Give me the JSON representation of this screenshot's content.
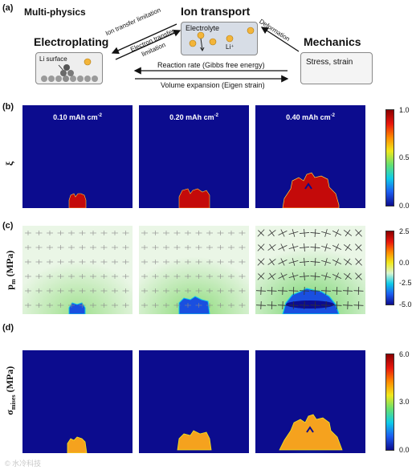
{
  "panels": {
    "a": "(a)",
    "b": "(b)",
    "c": "(c)",
    "d": "(d)"
  },
  "schematic": {
    "multiphysics": "Multi-physics",
    "ion_transport": "Ion transport",
    "electroplating": "Electroplating",
    "mechanics": "Mechanics",
    "electrolyte": "Electrolyte",
    "li_ion": "Li⁺",
    "li_surface": "Li surface",
    "stress_strain": "Stress, strain",
    "ion_transfer_limitation": "Ion transfer limitation",
    "electron_transfer_limitation": "Electron transfer",
    "electron_transfer_limitation_2": "limitation",
    "deformation": "Deformation",
    "reaction_rate": "Reaction rate (Gibbs free energy)",
    "volume_expansion": "Volume expansion (Eigen strain)"
  },
  "capacities": [
    {
      "value": "0.10 mAh cm",
      "exp": "-2"
    },
    {
      "value": "0.20 mAh cm",
      "exp": "-2"
    },
    {
      "value": "0.40 mAh cm",
      "exp": "-2"
    }
  ],
  "row_b": {
    "ylabel": "ξ",
    "ticks": [
      "1.0",
      "0.5",
      "0.0"
    ]
  },
  "row_c": {
    "ylabel_main": "p",
    "ylabel_sub": "m",
    "ylabel_unit": " (MPa)",
    "ticks": [
      "2.5",
      "0.0",
      "-2.5",
      "-5.0"
    ]
  },
  "row_d": {
    "ylabel_main": "σ",
    "ylabel_sub": "mises",
    "ylabel_unit": " (MPa)",
    "ticks": [
      "6.0",
      "3.0",
      "0.0"
    ]
  },
  "watermark": "© 水冷科技",
  "colors": {
    "background_navy": "#0c0c8e",
    "dendrite_red": "#c40a0a",
    "dendrite_orange": "#f5a21e",
    "pressure_bg": "#eaf6e6"
  }
}
